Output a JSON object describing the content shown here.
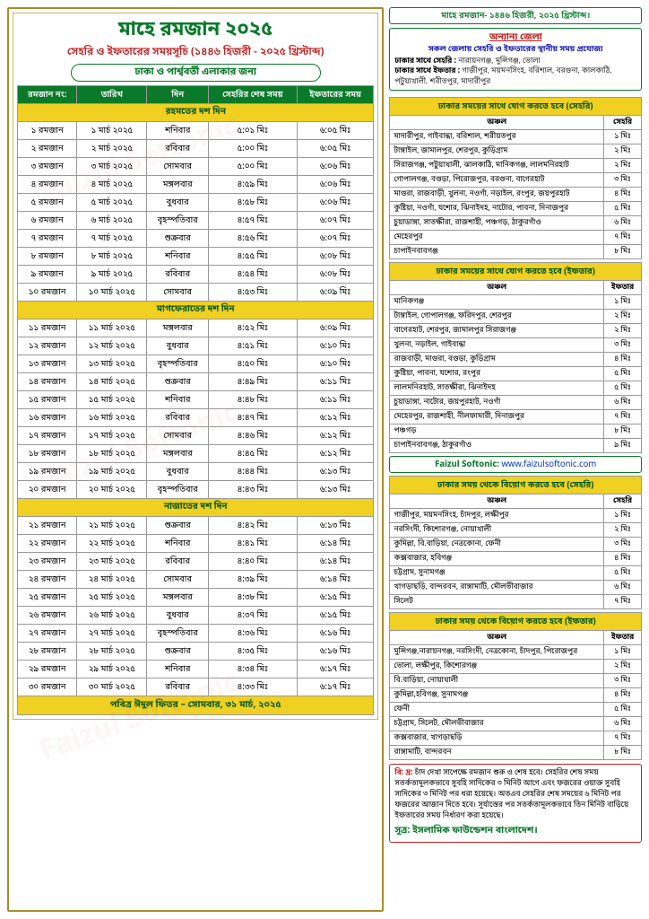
{
  "page": {
    "title": "মাহে রমজান ২০২৫",
    "subtitle": "সেহরি ও ইফতারের সময়সূচি (১৪৪৬ হিজরী - ২০২৫ খ্রিস্টাব্দ)",
    "region_box": "ঢাকা ও পার্শ্ববর্তী এলাকার জন্য",
    "footer": "পবিত্র ঈদুল ফিতর – সোমবার, ৩১ মার্চ, ২০২৫",
    "watermark": "Faizul Softonic"
  },
  "top_strip": "মাহে রমজান- ১৪৪৬ হিজরী, ২০২৫ খ্রিস্টাব্দ।",
  "columns": [
    "রমজান নং:",
    "তারিখ",
    "দিন",
    "সেহরির শেষ সময়",
    "ইফতারের সময়"
  ],
  "sections": [
    {
      "title": "রহমতের দশ দিন",
      "rows": [
        [
          "১ রমজান",
          "১ মার্চ ২০২৫",
          "শনিবার",
          "৫:০১ মিঃ",
          "৬:০৫ মিঃ"
        ],
        [
          "২ রমজান",
          "২ মার্চ ২০২৫",
          "রবিবার",
          "৫:০০ মিঃ",
          "৬:০৫ মিঃ"
        ],
        [
          "৩ রমজান",
          "৩ মার্চ ২০২৫",
          "সোমবার",
          "৫:০০ মিঃ",
          "৬:০৬ মিঃ"
        ],
        [
          "৪ রমজান",
          "৪ মার্চ ২০২৫",
          "মঙ্গলবার",
          "৪:৫৯ মিঃ",
          "৬:০৬ মিঃ"
        ],
        [
          "৫ রমজান",
          "৫ মার্চ ২০২৫",
          "বুধবার",
          "৪:৫৮ মিঃ",
          "৬:০৬ মিঃ"
        ],
        [
          "৬ রমজান",
          "৬ মার্চ ২০২৫",
          "বৃহস্পতিবার",
          "৪:৫৭ মিঃ",
          "৬:০৭ মিঃ"
        ],
        [
          "৭ রমজান",
          "৭ মার্চ ২০২৫",
          "শুক্রবার",
          "৪:৫৬ মিঃ",
          "৬:০৭ মিঃ"
        ],
        [
          "৮ রমজান",
          "৮ মার্চ ২০২৫",
          "শনিবার",
          "৪:৫৫ মিঃ",
          "৬:০৮ মিঃ"
        ],
        [
          "৯ রমজান",
          "৯ মার্চ ২০২৫",
          "রবিবার",
          "৪:৫৪ মিঃ",
          "৬:০৮ মিঃ"
        ],
        [
          "১০ রমজান",
          "১০ মার্চ ২০২৫",
          "সোমবার",
          "৪:৫৩ মিঃ",
          "৬:০৯ মিঃ"
        ]
      ]
    },
    {
      "title": "মাগফেরাতের দশ দিন",
      "rows": [
        [
          "১১ রমজান",
          "১১ মার্চ ২০২৫",
          "মঙ্গলবার",
          "৪:৫২ মিঃ",
          "৬:০৯ মিঃ"
        ],
        [
          "১২ রমজান",
          "১২ মার্চ ২০২৫",
          "বুধবার",
          "৪:৫১ মিঃ",
          "৬:১০ মিঃ"
        ],
        [
          "১৩ রমজান",
          "১৩ মার্চ ২০২৫",
          "বৃহস্পতিবার",
          "৪:৫০ মিঃ",
          "৬:১০ মিঃ"
        ],
        [
          "১৪ রমজান",
          "১৪ মার্চ ২০২৫",
          "শুক্রবার",
          "৪:৪৯ মিঃ",
          "৬:১১ মিঃ"
        ],
        [
          "১৫ রমজান",
          "১৫ মার্চ ২০২৫",
          "শনিবার",
          "৪:৪৮ মিঃ",
          "৬:১১ মিঃ"
        ],
        [
          "১৬ রমজান",
          "১৬ মার্চ ২০২৫",
          "রবিবার",
          "৪:৪৭ মিঃ",
          "৬:১২ মিঃ"
        ],
        [
          "১৭ রমজান",
          "১৭ মার্চ ২০২৫",
          "সোমবার",
          "৪:৪৬ মিঃ",
          "৬:১২ মিঃ"
        ],
        [
          "১৮ রমজান",
          "১৮ মার্চ ২০২৫",
          "মঙ্গলবার",
          "৪:৪৫ মিঃ",
          "৬:১২ মিঃ"
        ],
        [
          "১৯ রমজান",
          "১৯ মার্চ ২০২৫",
          "বুধবার",
          "৪:৪৪ মিঃ",
          "৬:১৩ মিঃ"
        ],
        [
          "২০ রমজান",
          "২০ মার্চ ২০২৫",
          "বৃহস্পতিবার",
          "৪:৪৩ মিঃ",
          "৬:১৩ মিঃ"
        ]
      ]
    },
    {
      "title": "নাজাতের দশ দিন",
      "rows": [
        [
          "২১ রমজান",
          "২১ মার্চ ২০২৫",
          "শুক্রবার",
          "৪:৪২ মিঃ",
          "৬:১৩ মিঃ"
        ],
        [
          "২২ রমজান",
          "২২ মার্চ ২০২৫",
          "শনিবার",
          "৪:৪১ মিঃ",
          "৬:১৪ মিঃ"
        ],
        [
          "২৩ রমজান",
          "২৩ মার্চ ২০২৫",
          "রবিবার",
          "৪:৪০ মিঃ",
          "৬:১৪ মিঃ"
        ],
        [
          "২৪ রমজান",
          "২৪ মার্চ ২০২৫",
          "সোমবার",
          "৪:৩৯ মিঃ",
          "৬:১৪ মিঃ"
        ],
        [
          "২৫ রমজান",
          "২৫ মার্চ ২০২৫",
          "মঙ্গলবার",
          "৪:৩৮ মিঃ",
          "৬:১৫ মিঃ"
        ],
        [
          "২৬ রমজান",
          "২৬ মার্চ ২০২৫",
          "বুধবার",
          "৪:৩৭ মিঃ",
          "৬:১৫ মিঃ"
        ],
        [
          "২৭ রমজান",
          "২৭ মার্চ ২০২৫",
          "বৃহস্পতিবার",
          "৪:৩৬ মিঃ",
          "৬:১৬ মিঃ"
        ],
        [
          "২৮ রমজান",
          "২৮ মার্চ ২০২৫",
          "শুক্রবার",
          "৪:৩৫ মিঃ",
          "৬:১৬ মিঃ"
        ],
        [
          "২৯ রমজান",
          "২৯ মার্চ ২০২৫",
          "শনিবার",
          "৪:৩৪ মিঃ",
          "৬:১৭ মিঃ"
        ],
        [
          "৩০ রমজান",
          "৩০ মার্চ ২০২৫",
          "রবিবার",
          "৪:৩৩ মিঃ",
          "৬:১৭ মিঃ"
        ]
      ]
    }
  ],
  "other_districts": {
    "header": "অন্যান্য জেলা",
    "sub": "সকল জেলায় সেহরি ও ইফতারের স্থানীয় সময় প্রযোজ্য",
    "sehri_same": {
      "label": "ঢাকার সাথে সেহরি :",
      "value": "নারায়নগঞ্জ, মুন্সিগঞ্জ, ভোলা"
    },
    "iftar_same": {
      "label": "ঢাকার সাথে ইফতার :",
      "value": "গাজীপুর, ময়মনসিংহ, বরিশাল, বরগুনা, কালকাঠি, পটুয়াখালী, শরীতপুর, মাদারীপুর"
    }
  },
  "adjust_tables": [
    {
      "head": "ঢাকার সময়ের সাথে যোগ করতে হবে (সেহরি)",
      "cols": [
        "অঞ্চল",
        "সেহরি"
      ],
      "rows": [
        [
          "মাদারীপুর, গাইবান্ধা, বরিশাল, শরীয়তপুর",
          "১ মিঃ"
        ],
        [
          "টাঙ্গাইল, জামালপুর, শেরপুর, কুড়িগ্রাম",
          "২ মিঃ"
        ],
        [
          "সিরাজগঞ্জ, পটুয়াখালী, ঝালকাঠি, মানিকগঞ্জ, লালমনিরহাট",
          "২ মিঃ"
        ],
        [
          "গোপালগঞ্জ, বগুড়া, পিরোজপুর, বরগুনা, বাগেরহাট",
          "৩ মিঃ"
        ],
        [
          "মাগুরা, রাজবাড়ী, খুলনা, নওগাঁ, নড়াইল, রংপুর, জয়পুরহাট",
          "৪ মিঃ"
        ],
        [
          "কুষ্টিয়া, নওগাঁ, যশোর, ঝিনাইদহ, নাটোর, পাবনা, দিনাজপুর",
          "৫ মিঃ"
        ],
        [
          "চুয়াডাঙ্গা, সাতক্ষীরা, রাজশাহী, পঞ্চগড়, ঠাকুরগাঁও",
          "৬ মিঃ"
        ],
        [
          "মেহেরপুর",
          "৭ মিঃ"
        ],
        [
          "চাপাইনবাবগঞ্জ",
          "৮ মিঃ"
        ]
      ]
    },
    {
      "head": "ঢাকার সময়ের সাথে যোগ করতে হবে (ইফতার)",
      "cols": [
        "অঞ্চল",
        "ইফতার"
      ],
      "rows": [
        [
          "মানিকগঞ্জ",
          "১ মিঃ"
        ],
        [
          "টাঙ্গাইল, গোপালগঞ্জ, ফরিদপুর, শেরপুর",
          "২ মিঃ"
        ],
        [
          "বাগেরহাট, শেরপুর, জামালপুর সিরাজগঞ্জ",
          "২ মিঃ"
        ],
        [
          "খুলনা, নড়াইল, গাইবান্ধা",
          "৩ মিঃ"
        ],
        [
          "রাজবাড়ী, মাগুরা, বগুড়া, কুড়িগ্রাম",
          "৪ মিঃ"
        ],
        [
          "কুষ্টিয়া, পাবনা, যশোর, রংপুর",
          "৫ মিঃ"
        ],
        [
          "লালমনিরহাট, সাতক্ষীরা, ঝিনাইদহ",
          "৫ মিঃ"
        ],
        [
          "চুয়াডাঙ্গা, নাটোর, জয়পুরহাট, নওগাঁ",
          "৬ মিঃ"
        ],
        [
          "মেহেরপুর, রাজশাহী, নীলফামারী, দিনাজপুর",
          "৭ মিঃ"
        ],
        [
          "পঞ্চগড়",
          "৮ মিঃ"
        ],
        [
          "চাপাইনবাবগঞ্জ, ঠাকুরগাঁও",
          "৯ মিঃ"
        ]
      ]
    },
    {
      "head": "ঢাকার সময় থেকে বিয়োগ করতে হবে (সেহরি)",
      "cols": [
        "অঞ্চল",
        "সেহরি"
      ],
      "rows": [
        [
          "গাজীপুর, ময়মনসিংহ, চাঁদপুর, লক্ষীপুর",
          "১ মিঃ"
        ],
        [
          "নরসিংদী, কিশোরগঞ্জ, নোয়াখালী",
          "২ মিঃ"
        ],
        [
          "কুমিল্লা, বি.বাড়িয়া, নেত্রকোনা, ফেনী",
          "৩ মিঃ"
        ],
        [
          "কক্সবাজার, হবিগঞ্জ",
          "৪ মিঃ"
        ],
        [
          "চট্টগ্রাম, সুনামগঞ্জ",
          "৫ মিঃ"
        ],
        [
          "খাগড়াছড়ি, বান্দরবন, রাঙ্গামাটি, মৌলভীবাজার",
          "৬ মিঃ"
        ],
        [
          "সিলেট",
          "৭ মিঃ"
        ]
      ]
    },
    {
      "head": "ঢাকার সময় থেকে বিয়োগ করতে হবে (ইফতার)",
      "cols": [
        "অঞ্চল",
        "ইফতার"
      ],
      "rows": [
        [
          "মুন্সিগঞ্জ,নারায়নগঞ্জ, নরসিংদী, নেত্রকোনা, চাঁদপুর, পিরোজপুর",
          "১ মিঃ"
        ],
        [
          "ভোলা, লক্ষীপুর, কিশোরগঞ্জ",
          "২ মিঃ"
        ],
        [
          "বি.বাড়িয়া, নোয়াখালী",
          "৩ মিঃ"
        ],
        [
          "কুমিল্লা,হবিগঞ্জ, সুনামগঞ্জ",
          "৪ মিঃ"
        ],
        [
          "ফেনী",
          "৫ মিঃ"
        ],
        [
          "চট্টগ্রাম, সিলেট, মৌলভীবাজার",
          "৬ মিঃ"
        ],
        [
          "কক্সবাজার, খাগড়াছড়ি",
          "৭ মিঃ"
        ],
        [
          "রাঙ্গামাটি, বান্দরবন",
          "৮ মিঃ"
        ]
      ]
    }
  ],
  "brand": {
    "name": "Faizul Softonic:",
    "url": "www.faizulsoftonic.com"
  },
  "note": {
    "prefix": "বি: দ্র:",
    "body": "চাঁদ দেখা সাপেক্ষে রমজান শুরু ও শেষ হবে। সেহরির শেষ সময় সতর্কতামূলকভাবে সুবহি সাদিকের ৩ মিনিট আগে এবং ফজরের ওয়াক্ত সুবহি সাদিকের ৩ মিনিট পর ধরা হয়েছে। অতএব সেহরির শেষ সময়ের ৬ মিনিট পর ফজরের আজান দিতে হবে। সূর্যাস্তের পর সতর্কতামূলকভাবে তিন মিনিট বাড়িয়ে ইফতারের সময় নির্ধারণ করা হয়েছে।",
    "source_label": "সূত্র:",
    "source_value": "ইসলামিক ফাউন্ডেশন বাংলাদেশ।"
  },
  "colors": {
    "green": "#0a7a2a",
    "red": "#c02020",
    "yellow": "#f0d020",
    "gold_border": "#a88b2a",
    "blue": "#0033cc"
  }
}
